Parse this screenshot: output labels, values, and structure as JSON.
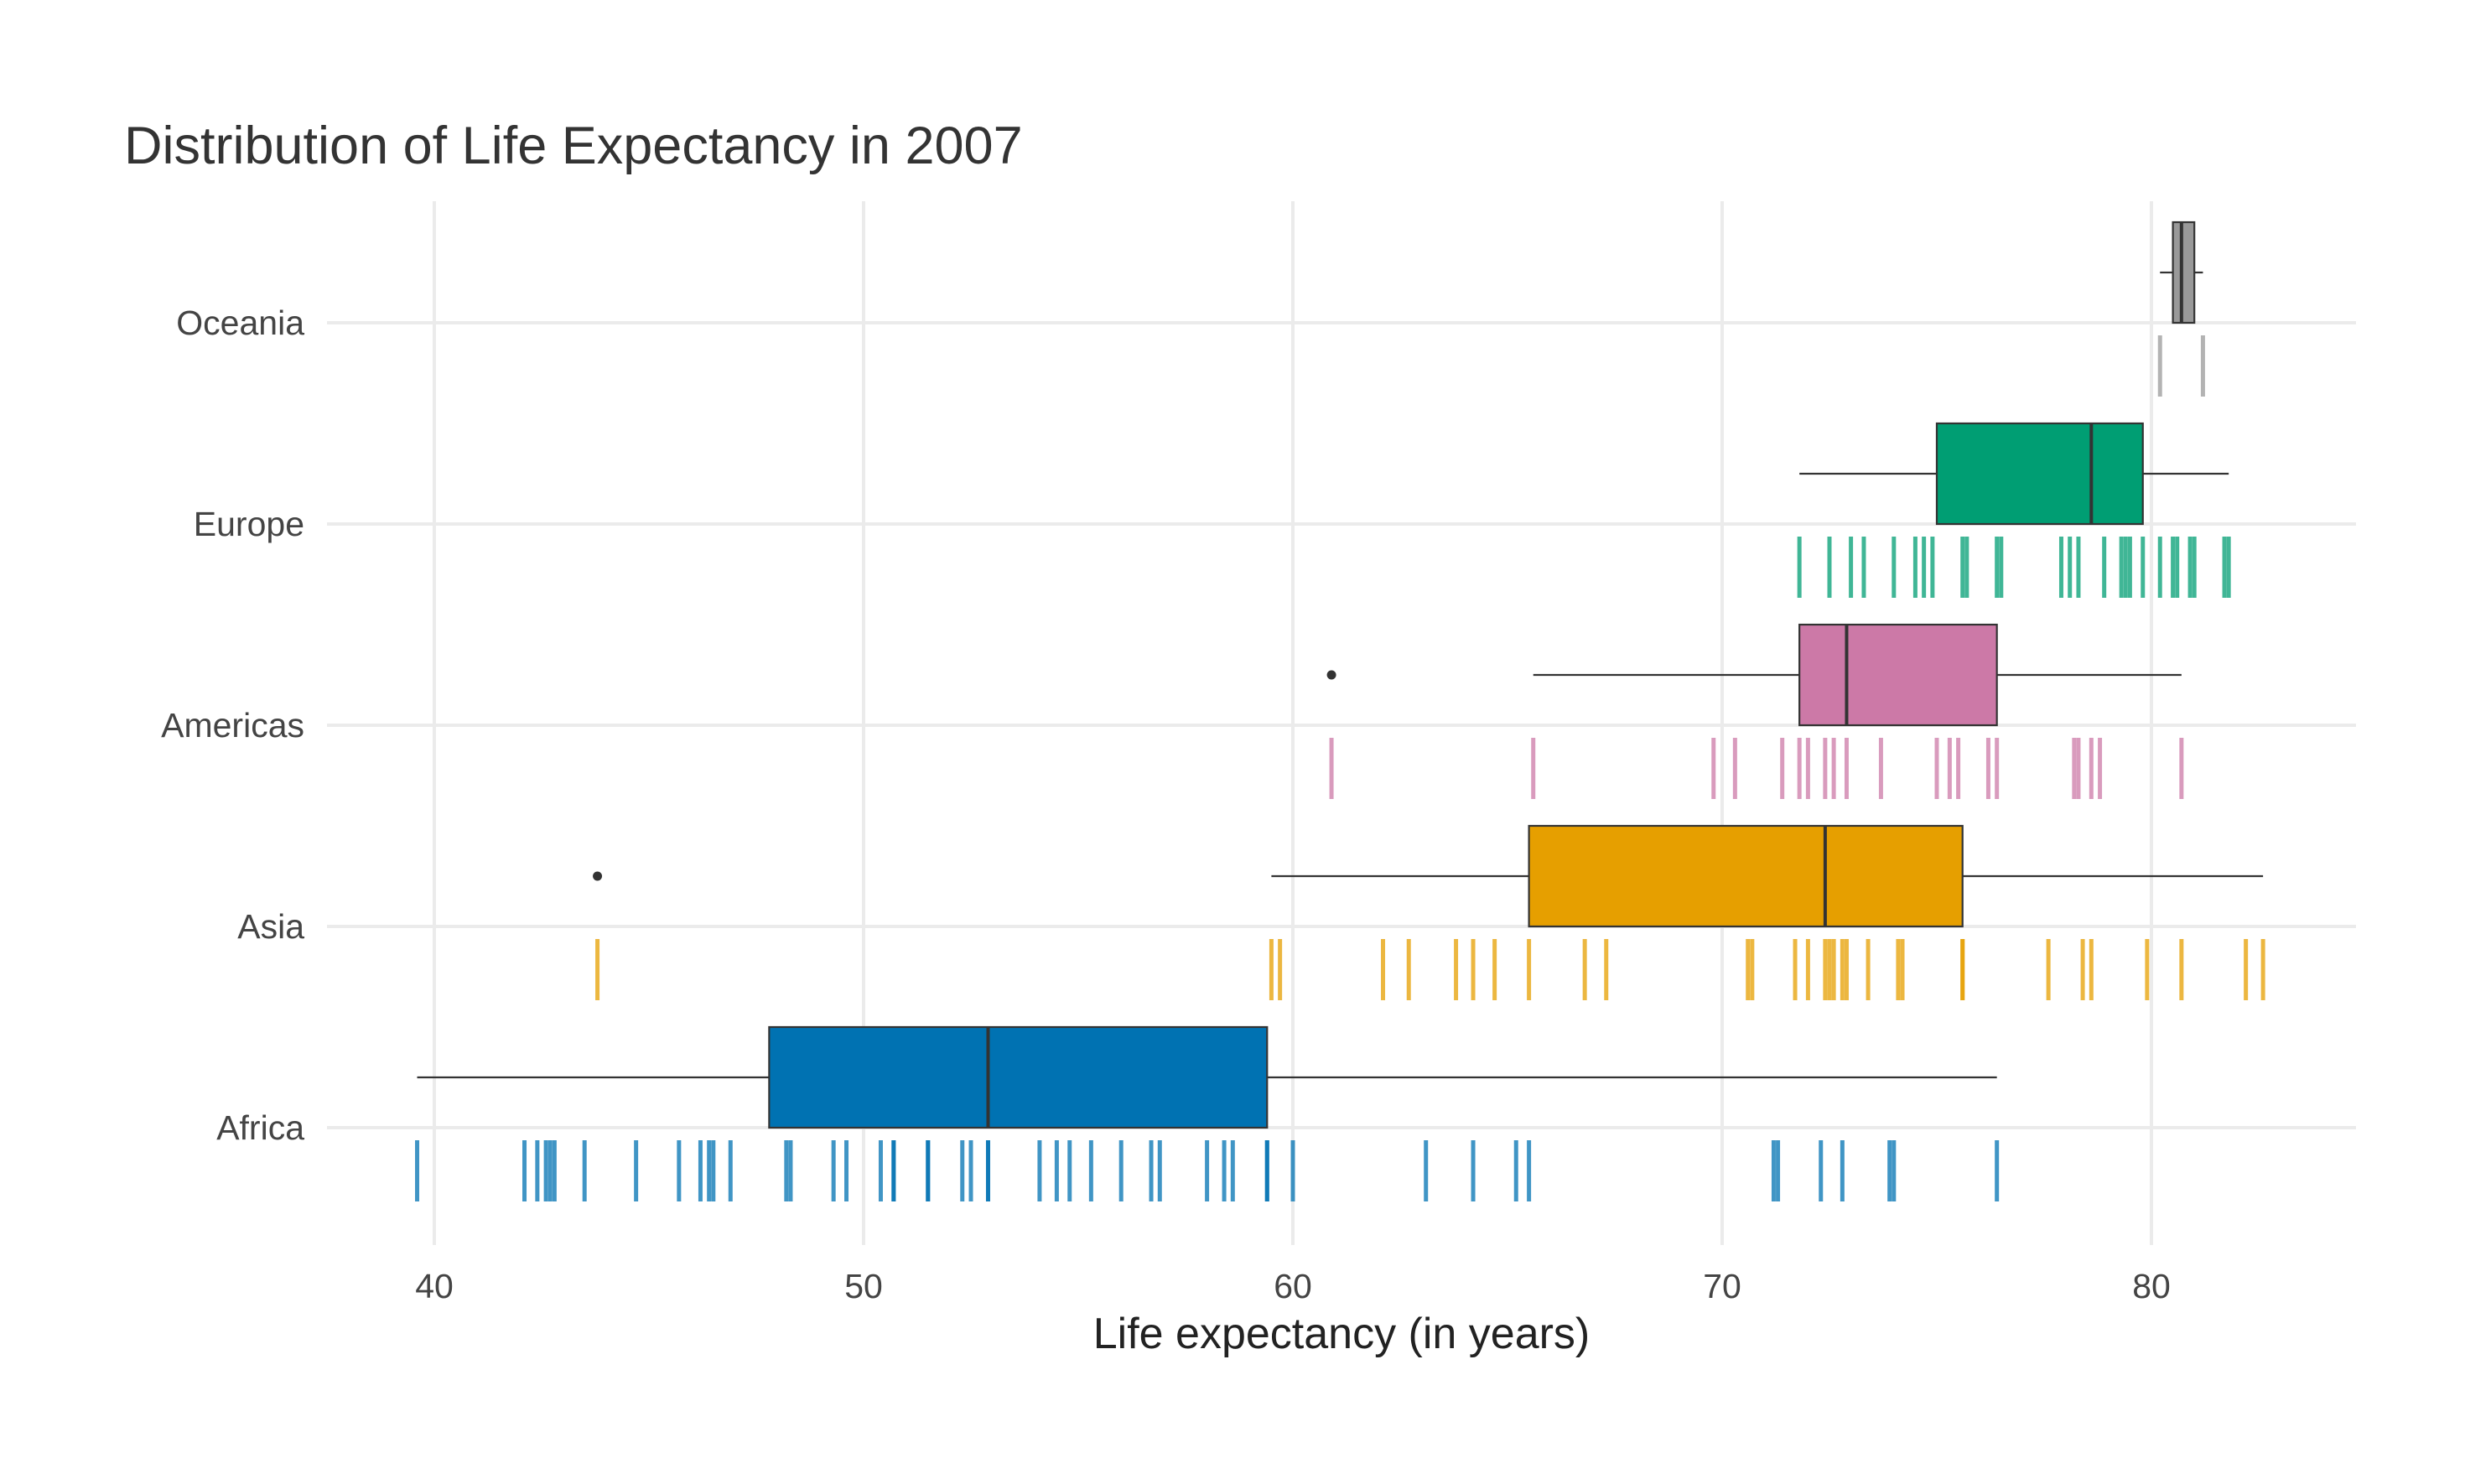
{
  "chart_data": {
    "type": "boxplot",
    "title": "Distribution of Life Expectancy in 2007",
    "xlabel": "Life expectancy (in years)",
    "ylabel": "",
    "xlim": [
      37.5,
      85.0
    ],
    "x_ticks": [
      "40",
      "50",
      "60",
      "70",
      "80"
    ],
    "x_tick_values": [
      40,
      50,
      60,
      70,
      80
    ],
    "grid": true,
    "legend": "none",
    "categories": [
      "Africa",
      "Asia",
      "Americas",
      "Europe",
      "Oceania"
    ],
    "groups": [
      {
        "name": "Africa",
        "color": "#0072B2",
        "q1": 47.8,
        "median": 52.9,
        "q3": 59.4,
        "whisker_low": 39.6,
        "whisker_high": 76.4,
        "outliers": [],
        "points": [
          39.6,
          42.1,
          42.4,
          42.6,
          42.7,
          42.8,
          43.5,
          44.7,
          45.7,
          46.2,
          46.4,
          46.5,
          46.9,
          48.2,
          48.3,
          49.3,
          49.6,
          50.4,
          50.7,
          50.7,
          51.5,
          51.5,
          52.3,
          52.5,
          52.9,
          52.9,
          54.1,
          54.5,
          54.8,
          55.3,
          56.0,
          56.7,
          56.9,
          58.0,
          58.4,
          58.6,
          59.4,
          59.4,
          60.0,
          63.1,
          64.2,
          65.2,
          65.5,
          71.2,
          71.3,
          72.3,
          72.8,
          73.9,
          74.0,
          76.4
        ]
      },
      {
        "name": "Asia",
        "color": "#E69F00",
        "q1": 65.5,
        "median": 72.4,
        "q3": 75.6,
        "whisker_low": 59.5,
        "whisker_high": 82.6,
        "outliers": [
          43.8
        ],
        "points": [
          43.8,
          59.5,
          59.7,
          62.1,
          62.7,
          63.8,
          64.2,
          64.7,
          65.5,
          66.8,
          67.3,
          70.6,
          70.7,
          71.7,
          72.0,
          72.4,
          72.5,
          72.6,
          72.8,
          72.9,
          73.4,
          74.1,
          74.2,
          75.6,
          75.6,
          77.6,
          78.4,
          78.6,
          79.9,
          80.7,
          82.2,
          82.6
        ]
      },
      {
        "name": "Americas",
        "color": "#CC79A7",
        "q1": 71.8,
        "median": 72.9,
        "q3": 76.4,
        "whisker_low": 65.6,
        "whisker_high": 80.7,
        "outliers": [
          60.9
        ],
        "points": [
          60.9,
          65.6,
          69.8,
          70.3,
          71.4,
          71.8,
          72.0,
          72.4,
          72.6,
          72.9,
          73.7,
          75.0,
          75.3,
          75.5,
          76.2,
          76.4,
          78.2,
          78.3,
          78.6,
          78.8,
          80.7
        ]
      },
      {
        "name": "Europe",
        "color": "#009E73",
        "q1": 75.0,
        "median": 78.6,
        "q3": 79.8,
        "whisker_low": 71.8,
        "whisker_high": 81.8,
        "outliers": [],
        "points": [
          71.8,
          72.5,
          73.0,
          73.3,
          74.0,
          74.5,
          74.7,
          74.9,
          75.6,
          75.7,
          76.4,
          76.5,
          77.9,
          78.1,
          78.3,
          78.9,
          79.3,
          79.4,
          79.5,
          79.8,
          80.2,
          80.5,
          80.6,
          80.9,
          81.0,
          81.7,
          81.8
        ]
      },
      {
        "name": "Oceania",
        "color": "#999999",
        "q1": 80.5,
        "median": 80.7,
        "q3": 81.0,
        "whisker_low": 80.2,
        "whisker_high": 81.2,
        "outliers": [],
        "points": [
          80.2,
          81.2
        ]
      }
    ]
  }
}
